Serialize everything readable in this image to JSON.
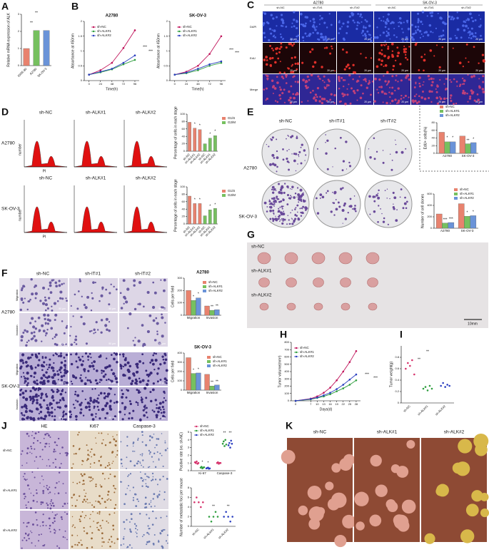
{
  "letters": [
    "A",
    "B",
    "C",
    "D",
    "E",
    "F",
    "G",
    "H",
    "I",
    "J",
    "K"
  ],
  "charts": [
    {
      "type": "bar",
      "ylabel": "Relative mRNA expression of ALK",
      "categories": [
        "IOSE-80",
        "A2780",
        "SK-OV-3"
      ],
      "values": [
        1,
        2.05,
        2.05
      ],
      "colors": [
        "#e8826e",
        "#76c05f",
        "#6a93d8"
      ],
      "ylim": [
        0,
        3
      ],
      "yticks": [
        0,
        1,
        2,
        3
      ],
      "annotations": [
        "**",
        "**"
      ]
    },
    {
      "type": "line",
      "title": "A2780",
      "ylabel": "Absorbance at 450nm",
      "xlabel": "Time(h)",
      "x": [
        0,
        24,
        48,
        72,
        96
      ],
      "xlim": [
        -10,
        105
      ],
      "xticks": [
        0,
        24,
        48,
        72,
        96
      ],
      "ylim": [
        0,
        2
      ],
      "yticks": [
        0,
        0.5,
        1,
        1.5,
        2
      ],
      "series": [
        {
          "name": "sh-NC",
          "color": "#c0135a",
          "values": [
            0.2,
            0.35,
            0.6,
            1.1,
            1.7
          ]
        },
        {
          "name": "sh-ALK#1",
          "color": "#2e9e3e",
          "values": [
            0.2,
            0.28,
            0.38,
            0.55,
            0.7
          ]
        },
        {
          "name": "sh-ALK#2",
          "color": "#2b3fc0",
          "values": [
            0.2,
            0.3,
            0.4,
            0.6,
            0.85
          ]
        }
      ],
      "annotations": [
        "***",
        "***"
      ]
    },
    {
      "type": "line",
      "title": "SK-OV-3",
      "ylabel": "Absorbance at 450nm",
      "xlabel": "Time(h)",
      "x": [
        0,
        24,
        48,
        72,
        96
      ],
      "xlim": [
        -10,
        105
      ],
      "xticks": [
        0,
        24,
        48,
        72,
        96
      ],
      "ylim": [
        0,
        2
      ],
      "yticks": [
        0,
        0.5,
        1,
        1.5,
        2
      ],
      "series": [
        {
          "name": "sh-NC",
          "color": "#c0135a",
          "values": [
            0.2,
            0.3,
            0.5,
            0.9,
            1.5
          ]
        },
        {
          "name": "sh-ALK#1",
          "color": "#2e9e3e",
          "values": [
            0.2,
            0.25,
            0.35,
            0.5,
            0.6
          ]
        },
        {
          "name": "sh-ALK#2",
          "color": "#2b3fc0",
          "values": [
            0.2,
            0.27,
            0.4,
            0.55,
            0.65
          ]
        }
      ],
      "annotations": [
        "***",
        "***"
      ]
    },
    {
      "type": "bar",
      "ylabel": "Percentage of cells in each stage",
      "categories": [
        "sh-NC",
        "sh-ALK#1",
        "sh-ALK#2",
        "sh-NC",
        "sh-ALK#1",
        "sh-ALK#2"
      ],
      "series": [
        {
          "name": "G1/S",
          "color": "#e8826e",
          "values": [
            78,
            62,
            58,
            null,
            null,
            null
          ]
        },
        {
          "name": "G2/M",
          "color": "#76c05f",
          "values": [
            null,
            null,
            null,
            20,
            35,
            42
          ]
        }
      ],
      "ylim": [
        0,
        100
      ],
      "yticks": [
        0,
        20,
        40,
        60,
        80,
        100
      ],
      "annotations": [
        "*",
        "*",
        "*",
        "*"
      ]
    },
    {
      "type": "bar",
      "ylabel": "Percentage of cells in each stage",
      "categories": [
        "sh-NC",
        "sh-ALK#1",
        "sh-ALK#2",
        "sh-NC",
        "sh-ALK#1",
        "sh-ALK#2"
      ],
      "series": [
        {
          "name": "G1/S",
          "color": "#e8826e",
          "values": [
            75,
            55,
            55,
            null,
            null,
            null
          ]
        },
        {
          "name": "G2/M",
          "color": "#76c05f",
          "values": [
            null,
            null,
            null,
            22,
            38,
            42
          ]
        }
      ],
      "ylim": [
        0,
        100
      ],
      "yticks": [
        0,
        20,
        40,
        60,
        80,
        100
      ],
      "annotations": [
        "*",
        "*",
        "*",
        "*"
      ]
    },
    {
      "type": "bar",
      "ylabel": "EdU+ cells(%)",
      "categories": [
        "A2780",
        "SK-OV-3"
      ],
      "series": [
        {
          "name": "sh-NC",
          "color": "#e8826e",
          "values": [
            55,
            45
          ]
        },
        {
          "name": "sh-ALK#1",
          "color": "#76c05f",
          "values": [
            30,
            25
          ]
        },
        {
          "name": "sh-ALK#2",
          "color": "#6a93d8",
          "values": [
            30,
            28
          ]
        }
      ],
      "ylim": [
        0,
        80
      ],
      "yticks": [
        0,
        20,
        40,
        60,
        80
      ],
      "annotations": [
        "*",
        "*",
        "**",
        "*"
      ]
    },
    {
      "type": "bar",
      "ylabel": "Number of cell clones",
      "categories": [
        "A2780",
        "SK-OV-3"
      ],
      "series": [
        {
          "name": "sh-NC",
          "color": "#e8826e",
          "values": [
            250,
            430
          ]
        },
        {
          "name": "sh-ALK#1",
          "color": "#76c05f",
          "values": [
            90,
            210
          ]
        },
        {
          "name": "sh-ALK#2",
          "color": "#6a93d8",
          "values": [
            100,
            220
          ]
        }
      ],
      "ylim": [
        0,
        600
      ],
      "yticks": [
        0,
        200,
        400,
        600
      ],
      "annotations": [
        "***",
        "***",
        "*",
        "*"
      ]
    },
    {
      "type": "bar",
      "title": "A2780",
      "ylabel": "Cells per field",
      "categories": [
        "Migration",
        "Invasion"
      ],
      "series": [
        {
          "name": "sh-NC",
          "color": "#e8826e",
          "values": [
            200,
            75
          ]
        },
        {
          "name": "sh-ALK#1",
          "color": "#76c05f",
          "values": [
            120,
            40
          ]
        },
        {
          "name": "sh-ALK#2",
          "color": "#6a93d8",
          "values": [
            140,
            45
          ]
        }
      ],
      "ylim": [
        0,
        300
      ],
      "yticks": [
        0,
        100,
        200,
        300
      ],
      "annotations": [
        "*",
        "*",
        "**",
        "**"
      ]
    },
    {
      "type": "bar",
      "title": "SK-OV-3",
      "ylabel": "Cells per field",
      "categories": [
        "Migration",
        "Invasion"
      ],
      "series": [
        {
          "name": "sh-NC",
          "color": "#e8826e",
          "values": [
            350,
            170
          ]
        },
        {
          "name": "sh-ALK#1",
          "color": "#76c05f",
          "values": [
            180,
            45
          ]
        },
        {
          "name": "sh-ALK#2",
          "color": "#6a93d8",
          "values": [
            185,
            55
          ]
        }
      ],
      "ylim": [
        0,
        400
      ],
      "yticks": [
        0,
        100,
        200,
        300,
        400
      ],
      "annotations": [
        "*",
        "*",
        "**",
        "**"
      ]
    },
    {
      "type": "line",
      "ylabel": "Tumor volume(mm³)",
      "xlabel": "Days(d)",
      "x": [
        0,
        7,
        10,
        13,
        16,
        19,
        22,
        25,
        28
      ],
      "xlim": [
        -2,
        30
      ],
      "xticks": [
        0,
        7,
        10,
        13,
        16,
        19,
        22,
        25,
        28
      ],
      "ylim": [
        0,
        800
      ],
      "yticks": [
        0,
        100,
        200,
        300,
        400,
        500,
        600,
        700,
        800
      ],
      "series": [
        {
          "name": "sh-NC",
          "color": "#c0135a",
          "values": [
            0,
            30,
            60,
            110,
            180,
            280,
            400,
            530,
            680
          ]
        },
        {
          "name": "sh-ALK#1",
          "color": "#2e9e3e",
          "values": [
            0,
            20,
            40,
            60,
            90,
            130,
            170,
            220,
            280
          ]
        },
        {
          "name": "sh-ALK#2",
          "color": "#2b3fc0",
          "values": [
            0,
            25,
            45,
            75,
            110,
            160,
            220,
            290,
            360
          ]
        }
      ],
      "annotations": [
        "***",
        "***"
      ]
    },
    {
      "type": "dot",
      "ylabel": "Tumor weight(g)",
      "categories": [
        "sh-NC",
        "sh-ALK#1",
        "sh-ALK#2"
      ],
      "values": [
        [
          0.6,
          0.7,
          0.65,
          0.75,
          0.5
        ],
        [
          0.25,
          0.28,
          0.22,
          0.3,
          0.25
        ],
        [
          0.3,
          0.35,
          0.28,
          0.32,
          0.3
        ]
      ],
      "colors": [
        "#d6336c",
        "#2e9e3e",
        "#2b3fc0"
      ],
      "ylim": [
        0,
        1
      ],
      "yticks": [
        0,
        0.2,
        0.4,
        0.6,
        0.8
      ],
      "annotations": [
        "**",
        "**"
      ]
    },
    {
      "type": "dot",
      "ylabel": "Positive rate (vs. sh-NC)",
      "categories": [
        "Ki-67",
        "Caspase-3"
      ],
      "series": [
        {
          "name": "sh-NC",
          "color": "#d6336c",
          "values": [
            [
              1.1,
              1,
              1.2,
              0.9,
              1
            ],
            [
              1,
              1.1,
              0.9,
              1,
              1
            ]
          ]
        },
        {
          "name": "sh-ALK#1",
          "color": "#2e9e3e",
          "values": [
            [
              0.4,
              0.5,
              0.3,
              0.4,
              0.45
            ],
            [
              3.5,
              3.8,
              3.2,
              4,
              3.4
            ]
          ]
        },
        {
          "name": "sh-ALK#2",
          "color": "#2b3fc0",
          "values": [
            [
              0.3,
              0.35,
              0.4,
              0.25,
              0.3
            ],
            [
              3.3,
              3.6,
              3,
              3.9,
              3.5
            ]
          ]
        }
      ],
      "ylim": [
        0,
        5
      ],
      "yticks": [
        0,
        1,
        2,
        3,
        4,
        5
      ],
      "annotations": [
        "*",
        "*",
        "**",
        "**"
      ]
    },
    {
      "type": "dot",
      "ylabel": "Number of metastatic foci per mouse",
      "categories": [
        "sh-NC",
        "sh-ALK#1",
        "sh-ALK#2"
      ],
      "values": [
        [
          5,
          6,
          5,
          4,
          5
        ],
        [
          2,
          1,
          2,
          3,
          2
        ],
        [
          2,
          3,
          2,
          1,
          2
        ]
      ],
      "colors": [
        "#d6336c",
        "#2e9e3e",
        "#2b3fc0"
      ],
      "ylim": [
        0,
        8
      ],
      "yticks": [
        0,
        2,
        4,
        6,
        8
      ],
      "annotations": [
        "**",
        "**"
      ]
    }
  ],
  "microscopy": {
    "groups": [
      "A2780",
      "SK-OV-3"
    ],
    "columns": [
      "sh-NC",
      "sh-IT#1",
      "sh-IT#2"
    ],
    "rows": [
      "DAPI",
      "EdU",
      "Merge"
    ],
    "scale": "20 μm"
  },
  "flow": {
    "columns": [
      "sh-NC",
      "sh-ALK#1",
      "sh-ALK#2"
    ],
    "rows": [
      "A2780",
      "SK-OV-3"
    ],
    "ylabel": "number",
    "xlabel": "PI"
  },
  "colony": {
    "columns": [
      "sh-NC",
      "sh-IT#1",
      "sh-IT#2"
    ],
    "rows": [
      "A2780",
      "SK-OV-3"
    ]
  },
  "transwell": {
    "columns": [
      "sh-NC",
      "sh-IT#1",
      "sh-IT#2"
    ],
    "groups": [
      "A2780",
      "SK-OV-3"
    ],
    "rows": [
      "Migration",
      "Invasion"
    ],
    "scale": "50 μm"
  },
  "tumors": {
    "rows": [
      "sh-NC",
      "sh-ALK#1",
      "sh-ALK#2"
    ],
    "scale": "10mm"
  },
  "ihc": {
    "columns": [
      "HE",
      "Ki67",
      "Caspase-3"
    ],
    "rows": [
      "sh-NC",
      "sh-ALK#1",
      "sh-ALK#2"
    ]
  },
  "metastasis": {
    "columns": [
      "sh-NC",
      "sh-ALK#1",
      "sh-ALK#2"
    ]
  }
}
